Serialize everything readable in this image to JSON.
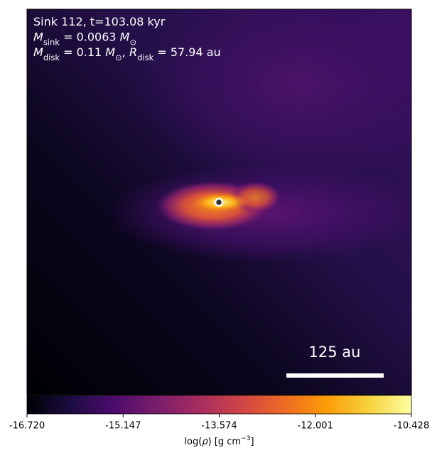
{
  "chart_data": {
    "type": "image",
    "annotations": [
      [
        {
          "t": "Sink 112, t=103.08 kyr"
        }
      ],
      [
        {
          "t": "M",
          "italic": true
        },
        {
          "t": "sink",
          "sub": true
        },
        {
          "t": " = 0.0063 "
        },
        {
          "t": "M",
          "italic": true
        },
        {
          "t": "⊙",
          "sub": true
        }
      ],
      [
        {
          "t": "M",
          "italic": true
        },
        {
          "t": "disk",
          "sub": true
        },
        {
          "t": " = 0.11 "
        },
        {
          "t": "M",
          "italic": true
        },
        {
          "t": "⊙",
          "sub": true
        },
        {
          "t": ", "
        },
        {
          "t": "R",
          "italic": true
        },
        {
          "t": "disk",
          "sub": true
        },
        {
          "t": " = 57.94 au"
        }
      ]
    ],
    "scale_bar": "125 au",
    "colorbar": {
      "label": [
        {
          "t": "log("
        },
        {
          "t": "ρ",
          "italic": true
        },
        {
          "t": ") [g cm"
        },
        {
          "t": "−3",
          "sup": true
        },
        {
          "t": "]"
        }
      ],
      "lim": [
        -16.72,
        -10.428
      ],
      "ticks": [
        {
          "value": -16.72,
          "label": "-16.720"
        },
        {
          "value": -15.147,
          "label": "-15.147"
        },
        {
          "value": -13.574,
          "label": "-13.574"
        },
        {
          "value": -12.001,
          "label": "-12.001"
        },
        {
          "value": -10.428,
          "label": "-10.428"
        }
      ],
      "colormap": [
        "#000004",
        "#1b0c41",
        "#4a0c6b",
        "#781c6d",
        "#a52c60",
        "#cf4446",
        "#ed6925",
        "#fb9b06",
        "#f7d13d",
        "#fcffa4"
      ]
    }
  }
}
